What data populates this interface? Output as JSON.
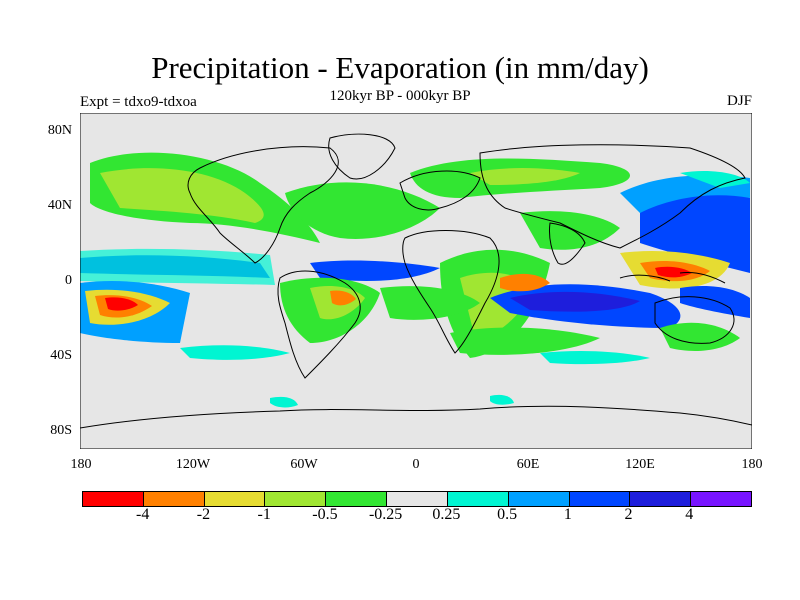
{
  "title": "Precipitation - Evaporation (in mm/day)",
  "subtitle": "120kyr BP - 000kyr BP",
  "left_label": "Expt = tdxo9-tdxoa",
  "right_label": "DJF",
  "map": {
    "background": "#e6e6e6",
    "lat_ticks": [
      "80N",
      "40N",
      "0",
      "40S",
      "80S"
    ],
    "lon_ticks": [
      "180",
      "120W",
      "60W",
      "0",
      "60E",
      "120E",
      "180"
    ]
  },
  "colorbar": {
    "colors": [
      "#ff0000",
      "#ff8000",
      "#e6dc32",
      "#a0e632",
      "#32e632",
      "#e6e6e6",
      "#00f5d2",
      "#00a0ff",
      "#0046ff",
      "#1e1edc",
      "#7814ff"
    ],
    "labels": [
      "-4",
      "-2",
      "-1",
      "-0.5",
      "-0.25",
      "0.25",
      "0.5",
      "1",
      "2",
      "4"
    ]
  }
}
